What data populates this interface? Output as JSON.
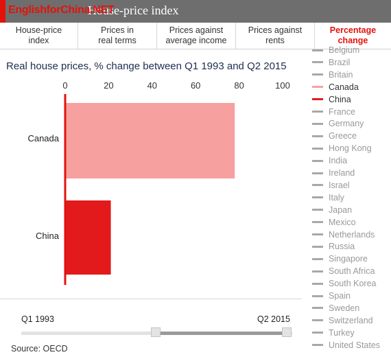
{
  "header": {
    "watermark": "EnglishforChina.NET",
    "title": "House-price index",
    "accent_color": "#e3120b"
  },
  "tabs": [
    {
      "label": "House-price\nindex",
      "active": false
    },
    {
      "label": "Prices in\nreal terms",
      "active": false
    },
    {
      "label": "Prices against\naverage income",
      "active": false
    },
    {
      "label": "Prices against\nrents",
      "active": false
    },
    {
      "label": "Percentage\nchange",
      "active": true
    }
  ],
  "chart_title": "Real house prices, % change between Q1 1993 and Q2 2015",
  "chart_data": {
    "type": "bar",
    "orientation": "horizontal",
    "title": "Real house prices, % change between Q1 1993 and Q2 2015",
    "categories": [
      "Canada",
      "China"
    ],
    "values": [
      78,
      21
    ],
    "colors": [
      "#f7a0a0",
      "#e31a1c"
    ],
    "xlim": [
      0,
      100
    ],
    "xticks": [
      0,
      20,
      40,
      60,
      80,
      100
    ],
    "xtick_labels": [
      "0",
      "20",
      "40",
      "60",
      "80",
      "100"
    ],
    "xlabel": "",
    "ylabel": "",
    "grid": false,
    "axis_color": "#e3120b"
  },
  "legend": {
    "items": [
      {
        "label": "Belgium",
        "color": "#a8a8a8",
        "selected": false
      },
      {
        "label": "Brazil",
        "color": "#a8a8a8",
        "selected": false
      },
      {
        "label": "Britain",
        "color": "#a8a8a8",
        "selected": false
      },
      {
        "label": "Canada",
        "color": "#f7a0a0",
        "selected": true
      },
      {
        "label": "China",
        "color": "#e31a1c",
        "selected": true
      },
      {
        "label": "France",
        "color": "#a8a8a8",
        "selected": false
      },
      {
        "label": "Germany",
        "color": "#a8a8a8",
        "selected": false
      },
      {
        "label": "Greece",
        "color": "#a8a8a8",
        "selected": false
      },
      {
        "label": "Hong Kong",
        "color": "#a8a8a8",
        "selected": false
      },
      {
        "label": "India",
        "color": "#a8a8a8",
        "selected": false
      },
      {
        "label": "Ireland",
        "color": "#a8a8a8",
        "selected": false
      },
      {
        "label": "Israel",
        "color": "#a8a8a8",
        "selected": false
      },
      {
        "label": "Italy",
        "color": "#a8a8a8",
        "selected": false
      },
      {
        "label": "Japan",
        "color": "#a8a8a8",
        "selected": false
      },
      {
        "label": "Mexico",
        "color": "#a8a8a8",
        "selected": false
      },
      {
        "label": "Netherlands",
        "color": "#a8a8a8",
        "selected": false
      },
      {
        "label": "Russia",
        "color": "#a8a8a8",
        "selected": false
      },
      {
        "label": "Singapore",
        "color": "#a8a8a8",
        "selected": false
      },
      {
        "label": "South Africa",
        "color": "#a8a8a8",
        "selected": false
      },
      {
        "label": "South Korea",
        "color": "#a8a8a8",
        "selected": false
      },
      {
        "label": "Spain",
        "color": "#a8a8a8",
        "selected": false
      },
      {
        "label": "Sweden",
        "color": "#a8a8a8",
        "selected": false
      },
      {
        "label": "Switzerland",
        "color": "#a8a8a8",
        "selected": false
      },
      {
        "label": "Turkey",
        "color": "#a8a8a8",
        "selected": false
      },
      {
        "label": "United States",
        "color": "#a8a8a8",
        "selected": false
      }
    ]
  },
  "slider": {
    "start_label": "Q1 1993",
    "end_label": "Q2 2015"
  },
  "source": "Source: OECD"
}
